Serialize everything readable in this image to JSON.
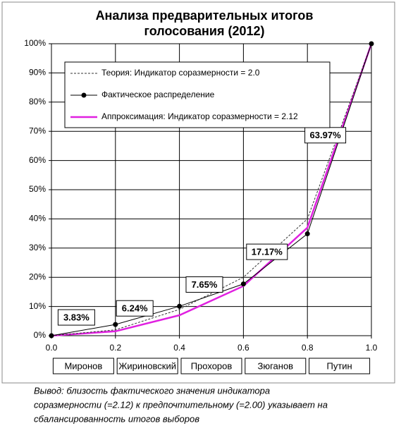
{
  "chart_data": {
    "type": "line",
    "title": [
      "Анализа предварительных итогов",
      "голосования (2012)"
    ],
    "x": [
      0,
      0.2,
      0.4,
      0.6,
      0.8,
      1
    ],
    "series": [
      {
        "name": "Теория: Индикатор соразмерности = 2.0",
        "color": "#333333",
        "style": "dashed",
        "values": [
          0,
          2,
          9,
          20,
          40,
          100
        ]
      },
      {
        "name": "Фактическое распределение",
        "color": "#000000",
        "style": "markers",
        "values": [
          0,
          3.83,
          10.07,
          17.72,
          34.89,
          100
        ]
      },
      {
        "name": "Аппроксимация: Индикатор соразмерности = 2.12",
        "color": "#e020e0",
        "style": "thick",
        "values": [
          0,
          1.5,
          7,
          17,
          37,
          100
        ]
      }
    ],
    "shares": {
      "values": [
        3.83,
        6.24,
        7.65,
        17.17,
        63.97
      ],
      "value_labels": [
        "3.83%",
        "6.24%",
        "7.65%",
        "17.17%",
        "63.97%"
      ]
    },
    "categories": [
      "Миронов",
      "Жириновский",
      "Прохоров",
      "Зюганов",
      "Путин"
    ],
    "xlim": [
      0,
      1
    ],
    "xticks": [
      {
        "value": 0,
        "label": "0.0"
      },
      {
        "value": 0.2,
        "label": "0.2"
      },
      {
        "value": 0.4,
        "label": "0.4"
      },
      {
        "value": 0.6,
        "label": "0.6"
      },
      {
        "value": 0.8,
        "label": "0.8"
      },
      {
        "value": 1,
        "label": "1.0"
      }
    ],
    "ylim": [
      0,
      100
    ],
    "yticks": [
      {
        "value": 0,
        "label": "0%"
      },
      {
        "value": 10,
        "label": "10%"
      },
      {
        "value": 20,
        "label": "20%"
      },
      {
        "value": 30,
        "label": "30%"
      },
      {
        "value": 40,
        "label": "40%"
      },
      {
        "value": 50,
        "label": "50%"
      },
      {
        "value": 60,
        "label": "60%"
      },
      {
        "value": 70,
        "label": "70%"
      },
      {
        "value": 80,
        "label": "80%"
      },
      {
        "value": 90,
        "label": "90%"
      },
      {
        "value": 100,
        "label": "100%"
      }
    ],
    "grid": true,
    "note": [
      "Вывод: близость фактического значения индикатора",
      "соразмерности (=2.12) к предпочтительному (=2.00) указывает на",
      "сбалансированность итогов выборов"
    ]
  }
}
